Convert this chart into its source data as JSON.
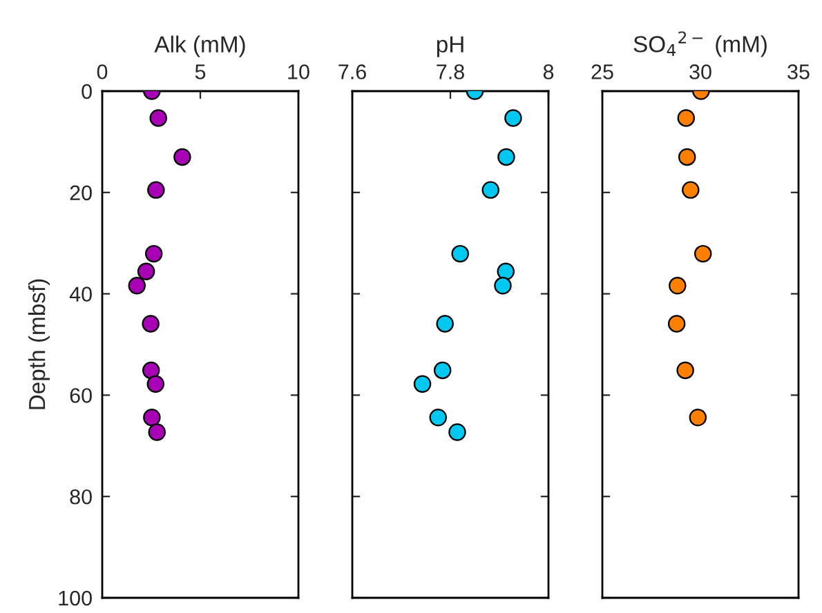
{
  "chart_data": [
    {
      "type": "scatter",
      "xlabel": "Alk (mM)",
      "ylabel": "Depth (mbsf)",
      "xlim": [
        0,
        10
      ],
      "xticks": [
        0,
        5,
        10
      ],
      "ylim": [
        100,
        0
      ],
      "yticks": [
        0,
        20,
        40,
        60,
        80,
        100
      ],
      "grid": false,
      "marker": "circle",
      "series": [
        {
          "color": "#a800b4",
          "x": [
            2.53,
            2.86,
            4.08,
            2.74,
            2.63,
            2.24,
            1.77,
            2.47,
            2.49,
            2.72,
            2.53,
            2.79
          ],
          "values": [
            0,
            5.3,
            13.0,
            19.5,
            32.1,
            35.6,
            38.4,
            45.9,
            55.1,
            57.8,
            64.4,
            67.3
          ]
        }
      ]
    },
    {
      "type": "scatter",
      "xlabel": "pH",
      "xlim": [
        7.6,
        8
      ],
      "xticks": [
        7.6,
        7.8,
        8
      ],
      "ylim": [
        100,
        0
      ],
      "yticks": [
        0,
        20,
        40,
        60,
        80,
        100
      ],
      "tick_labels": "x",
      "grid": false,
      "marker": "circle",
      "series": [
        {
          "color": "#00c8f0",
          "x": [
            7.85,
            7.928,
            7.914,
            7.882,
            7.82,
            7.913,
            7.907,
            7.789,
            7.784,
            7.743,
            7.775,
            7.814
          ],
          "values": [
            0,
            5.3,
            13.0,
            19.5,
            32.1,
            35.6,
            38.4,
            45.9,
            55.1,
            57.8,
            64.4,
            67.3
          ]
        }
      ]
    },
    {
      "type": "scatter",
      "xlabel": "SO$_{4}$$^{2−}$ (mM)",
      "xlim": [
        25,
        35
      ],
      "xticks": [
        25,
        30,
        35
      ],
      "ylim": [
        100,
        0
      ],
      "yticks": [
        0,
        20,
        40,
        60,
        80,
        100
      ],
      "tick_labels": "x",
      "grid": false,
      "marker": "circle",
      "series": [
        {
          "color": "#ff8000",
          "x": [
            30.03,
            29.27,
            29.32,
            29.5,
            30.13,
            28.83,
            28.79,
            29.23,
            29.87
          ],
          "values": [
            0,
            5.3,
            13.0,
            19.5,
            32.1,
            38.4,
            45.9,
            55.1,
            64.4
          ]
        }
      ]
    }
  ]
}
